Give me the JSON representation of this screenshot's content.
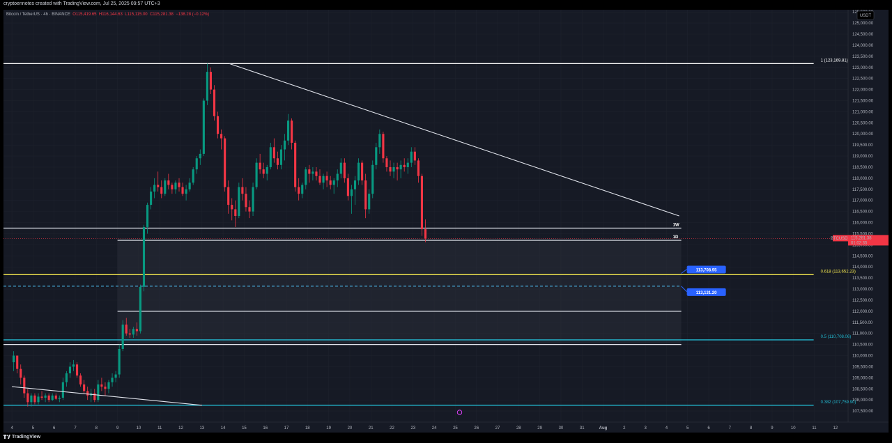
{
  "header": {
    "attribution": "cryptoennotes created with TradingView.com, Jul 25, 2025 09:57 UTC+3"
  },
  "legend": {
    "symbol": "Bitcoin / TetherUS · 4h · BINANCE",
    "open": "O115,419.65",
    "high": "H116,144.63",
    "low": "L115,115.00",
    "close": "C115,281.38",
    "change": "−138.28 (−0.12%)"
  },
  "currency_badge": "USDT",
  "price_tag": {
    "symbol": "BTCUSDT",
    "price": "115,281.38",
    "countdown": "01:02:35"
  },
  "level_labels": {
    "weekly": "1W",
    "daily": "1D"
  },
  "fib_labels": {
    "f1": "1 (123,169.81)",
    "f618": "0.618 (113,652.23)",
    "f5": "0.5 (110,708.06)",
    "f382": "0.382 (107,759.90)"
  },
  "price_callouts": {
    "upper": "113,708.95",
    "lower": "113,131.20"
  },
  "footer": {
    "brand": "TradingView"
  },
  "colors": {
    "background": "#161a25",
    "up": "#089981",
    "down": "#f23645",
    "grid": "#1e222d",
    "fib_yellow": "#f5e94f",
    "fib_cyan": "#22b8cf",
    "callout_blue": "#2962ff"
  },
  "chart_data": {
    "type": "candlestick",
    "title": "Bitcoin / TetherUS · 4h · BINANCE",
    "interval": "4h",
    "y_axis": {
      "range": [
        107000,
        125600
      ],
      "tick_labels": [
        "107,500.00",
        "108,000.00",
        "108,500.00",
        "109,000.00",
        "109,500.00",
        "110,000.00",
        "110,500.00",
        "111,000.00",
        "111,500.00",
        "112,000.00",
        "112,500.00",
        "113,000.00",
        "113,500.00",
        "114,000.00",
        "114,500.00",
        "115,000.00",
        "115,500.00",
        "116,000.00",
        "116,500.00",
        "117,000.00",
        "117,500.00",
        "118,000.00",
        "118,500.00",
        "119,000.00",
        "119,500.00",
        "120,000.00",
        "120,500.00",
        "121,000.00",
        "121,500.00",
        "122,000.00",
        "122,500.00",
        "123,000.00",
        "123,500.00",
        "124,000.00",
        "124,500.00",
        "125,000.00",
        "125,500.00"
      ]
    },
    "x_axis": {
      "range_days": [
        3.6,
        43.6
      ],
      "tick_labels": [
        {
          "d": 4,
          "label": "4"
        },
        {
          "d": 5,
          "label": "5"
        },
        {
          "d": 6,
          "label": "6"
        },
        {
          "d": 7,
          "label": "7"
        },
        {
          "d": 8,
          "label": "8"
        },
        {
          "d": 9,
          "label": "9"
        },
        {
          "d": 10,
          "label": "10"
        },
        {
          "d": 11,
          "label": "11"
        },
        {
          "d": 12,
          "label": "12"
        },
        {
          "d": 13,
          "label": "13"
        },
        {
          "d": 14,
          "label": "14"
        },
        {
          "d": 15,
          "label": "15"
        },
        {
          "d": 16,
          "label": "16"
        },
        {
          "d": 17,
          "label": "17"
        },
        {
          "d": 18,
          "label": "18"
        },
        {
          "d": 19,
          "label": "19"
        },
        {
          "d": 20,
          "label": "20"
        },
        {
          "d": 21,
          "label": "21"
        },
        {
          "d": 22,
          "label": "22"
        },
        {
          "d": 23,
          "label": "23"
        },
        {
          "d": 24,
          "label": "24"
        },
        {
          "d": 25,
          "label": "25"
        },
        {
          "d": 26,
          "label": "26"
        },
        {
          "d": 27,
          "label": "27"
        },
        {
          "d": 28,
          "label": "28"
        },
        {
          "d": 29,
          "label": "29"
        },
        {
          "d": 30,
          "label": "30"
        },
        {
          "d": 31,
          "label": "31"
        },
        {
          "d": 32,
          "label": "Aug"
        },
        {
          "d": 33,
          "label": "2"
        },
        {
          "d": 34,
          "label": "3"
        },
        {
          "d": 35,
          "label": "4"
        },
        {
          "d": 36,
          "label": "5"
        },
        {
          "d": 37,
          "label": "6"
        },
        {
          "d": 38,
          "label": "7"
        },
        {
          "d": 39,
          "label": "8"
        },
        {
          "d": 40,
          "label": "9"
        },
        {
          "d": 41,
          "label": "10"
        },
        {
          "d": 42,
          "label": "11"
        },
        {
          "d": 43,
          "label": "12"
        }
      ]
    },
    "candles_start_day": 4.0,
    "candles_per_day": 6,
    "candles": [
      [
        109700,
        110200,
        109300,
        110000
      ],
      [
        110000,
        110000,
        109200,
        109400
      ],
      [
        109400,
        109600,
        108700,
        109000
      ],
      [
        109000,
        109100,
        108100,
        108300
      ],
      [
        108300,
        108500,
        107700,
        107900
      ],
      [
        107900,
        108300,
        107700,
        108200
      ],
      [
        108200,
        108300,
        107800,
        107900
      ],
      [
        107900,
        108300,
        107800,
        108150
      ],
      [
        108150,
        108400,
        108000,
        108100
      ],
      [
        108100,
        108300,
        107900,
        108200
      ],
      [
        108200,
        108300,
        107900,
        108000
      ],
      [
        108000,
        108300,
        107950,
        108200
      ],
      [
        108200,
        108300,
        108000,
        108050
      ],
      [
        108050,
        108200,
        107900,
        108100
      ],
      [
        108100,
        109000,
        108000,
        108800
      ],
      [
        108800,
        109300,
        108600,
        109200
      ],
      [
        109200,
        109700,
        109000,
        109500
      ],
      [
        109500,
        109800,
        109300,
        109600
      ],
      [
        109600,
        109700,
        109000,
        109100
      ],
      [
        109100,
        109200,
        108600,
        108700
      ],
      [
        108700,
        108900,
        108300,
        108400
      ],
      [
        108400,
        108600,
        108000,
        108200
      ],
      [
        108200,
        108500,
        107900,
        108300
      ],
      [
        108300,
        108500,
        107900,
        108000
      ],
      [
        108000,
        108900,
        107900,
        108700
      ],
      [
        108700,
        109000,
        108400,
        108600
      ],
      [
        108600,
        108800,
        108200,
        108500
      ],
      [
        108500,
        108900,
        108300,
        108800
      ],
      [
        108800,
        109200,
        108600,
        109000
      ],
      [
        109000,
        109300,
        108800,
        109150
      ],
      [
        109150,
        110500,
        109000,
        110300
      ],
      [
        110300,
        111600,
        110200,
        111400
      ],
      [
        111400,
        111700,
        110900,
        111000
      ],
      [
        111000,
        111200,
        110800,
        110950
      ],
      [
        110950,
        111300,
        110800,
        111200
      ],
      [
        111200,
        111500,
        110900,
        111100
      ],
      [
        111100,
        113200,
        111000,
        113100
      ],
      [
        113100,
        115900,
        112900,
        115800
      ],
      [
        115800,
        116900,
        115500,
        116800
      ],
      [
        116800,
        117600,
        116600,
        117400
      ],
      [
        117400,
        118000,
        117100,
        117700
      ],
      [
        117700,
        118300,
        117400,
        117600
      ],
      [
        117600,
        117900,
        117100,
        117300
      ],
      [
        117300,
        118000,
        117200,
        117900
      ],
      [
        117900,
        118200,
        117500,
        117700
      ],
      [
        117700,
        117800,
        117300,
        117500
      ],
      [
        117500,
        117900,
        117300,
        117800
      ],
      [
        117800,
        118000,
        117400,
        117600
      ],
      [
        117600,
        117800,
        117200,
        117300
      ],
      [
        117300,
        117700,
        117000,
        117500
      ],
      [
        117500,
        118000,
        117400,
        117800
      ],
      [
        117800,
        118500,
        117700,
        118400
      ],
      [
        118400,
        119000,
        118200,
        118900
      ],
      [
        118900,
        119300,
        118600,
        119100
      ],
      [
        119100,
        121600,
        119000,
        121500
      ],
      [
        121500,
        123169,
        121300,
        122800
      ],
      [
        122800,
        123000,
        121800,
        122000
      ],
      [
        122000,
        122200,
        120600,
        120800
      ],
      [
        120800,
        121000,
        119800,
        120000
      ],
      [
        120000,
        120200,
        119300,
        119800
      ],
      [
        119800,
        119900,
        117400,
        117600
      ],
      [
        117600,
        117900,
        116400,
        116800
      ],
      [
        116800,
        117100,
        116100,
        116600
      ],
      [
        116600,
        117000,
        115800,
        116300
      ],
      [
        116300,
        117800,
        116200,
        117600
      ],
      [
        117600,
        118000,
        117000,
        117300
      ],
      [
        117300,
        117600,
        116500,
        116700
      ],
      [
        116700,
        117000,
        116200,
        116500
      ],
      [
        116500,
        117800,
        116300,
        117600
      ],
      [
        117600,
        118900,
        117500,
        118700
      ],
      [
        118700,
        119100,
        118200,
        118400
      ],
      [
        118400,
        118700,
        118000,
        118200
      ],
      [
        118200,
        118600,
        117900,
        118500
      ],
      [
        118500,
        119600,
        118400,
        119400
      ],
      [
        119400,
        119800,
        118700,
        118900
      ],
      [
        118900,
        119200,
        118400,
        118600
      ],
      [
        118600,
        119500,
        118400,
        119300
      ],
      [
        119300,
        120000,
        118800,
        119700
      ],
      [
        119700,
        120900,
        119500,
        120600
      ],
      [
        120600,
        120700,
        119300,
        119600
      ],
      [
        119600,
        119700,
        117400,
        117600
      ],
      [
        117600,
        118000,
        117000,
        117300
      ],
      [
        117300,
        117800,
        117100,
        117700
      ],
      [
        117700,
        118500,
        117500,
        118400
      ],
      [
        118400,
        118600,
        117800,
        118200
      ],
      [
        118200,
        118500,
        117900,
        118300
      ],
      [
        118300,
        118500,
        117900,
        118100
      ],
      [
        118100,
        118400,
        117700,
        117800
      ],
      [
        117800,
        118200,
        117500,
        118100
      ],
      [
        118100,
        118300,
        117600,
        117900
      ],
      [
        117900,
        118100,
        117500,
        117700
      ],
      [
        117700,
        118000,
        117300,
        117900
      ],
      [
        117900,
        118400,
        117600,
        118200
      ],
      [
        118200,
        118900,
        118000,
        118700
      ],
      [
        118700,
        118900,
        117800,
        118000
      ],
      [
        118000,
        118200,
        117000,
        117200
      ],
      [
        117200,
        117700,
        116400,
        117500
      ],
      [
        117500,
        118100,
        116800,
        117900
      ],
      [
        117900,
        118900,
        117700,
        118700
      ],
      [
        118700,
        118800,
        117700,
        117900
      ],
      [
        117900,
        118200,
        116200,
        116600
      ],
      [
        116600,
        117500,
        116400,
        117300
      ],
      [
        117300,
        118800,
        117100,
        118600
      ],
      [
        118600,
        119600,
        118400,
        119400
      ],
      [
        119400,
        120200,
        119100,
        120000
      ],
      [
        120000,
        120100,
        118700,
        118900
      ],
      [
        118900,
        119000,
        118300,
        118500
      ],
      [
        118500,
        118800,
        118100,
        118300
      ],
      [
        118300,
        118700,
        118000,
        118500
      ],
      [
        118500,
        118700,
        117900,
        118400
      ],
      [
        118400,
        118800,
        118000,
        118600
      ],
      [
        118600,
        118900,
        118300,
        118500
      ],
      [
        118500,
        118900,
        118200,
        118700
      ],
      [
        118700,
        119400,
        118500,
        119200
      ],
      [
        119200,
        119400,
        118600,
        118800
      ],
      [
        118800,
        118900,
        117800,
        118100
      ],
      [
        118100,
        118200,
        115400,
        115700
      ],
      [
        115700,
        116144,
        115115,
        115281
      ]
    ],
    "trendlines": [
      {
        "name": "Descending resistance",
        "from": [
          14.3,
          123169
        ],
        "to": [
          35.6,
          116300
        ]
      },
      {
        "name": "Lower support",
        "from": [
          4.0,
          108600
        ],
        "to": [
          13.0,
          107760
        ]
      }
    ],
    "horizontal_levels": [
      {
        "label": "1W",
        "value": 115750,
        "from_day": 3.6,
        "to_day": 35.7
      },
      {
        "label": "1D",
        "value": 115200,
        "from_day": 9.0,
        "to_day": 35.7
      },
      {
        "value": 112000,
        "from_day": 9.0,
        "to_day": 35.7
      },
      {
        "value": 110500,
        "from_day": 3.6,
        "to_day": 35.7
      }
    ],
    "zone": {
      "low": 110500,
      "high": 115200,
      "from_day": 9.0,
      "to_day": 35.7
    },
    "fibonacci": [
      {
        "ratio": "1",
        "value": 123169.81
      },
      {
        "ratio": "0.618",
        "value": 113652.23
      },
      {
        "ratio": "0.5",
        "value": 110708.06
      },
      {
        "ratio": "0.382",
        "value": 107759.9
      }
    ],
    "dashed_level": 113131.2,
    "current_price": 115281.38
  }
}
